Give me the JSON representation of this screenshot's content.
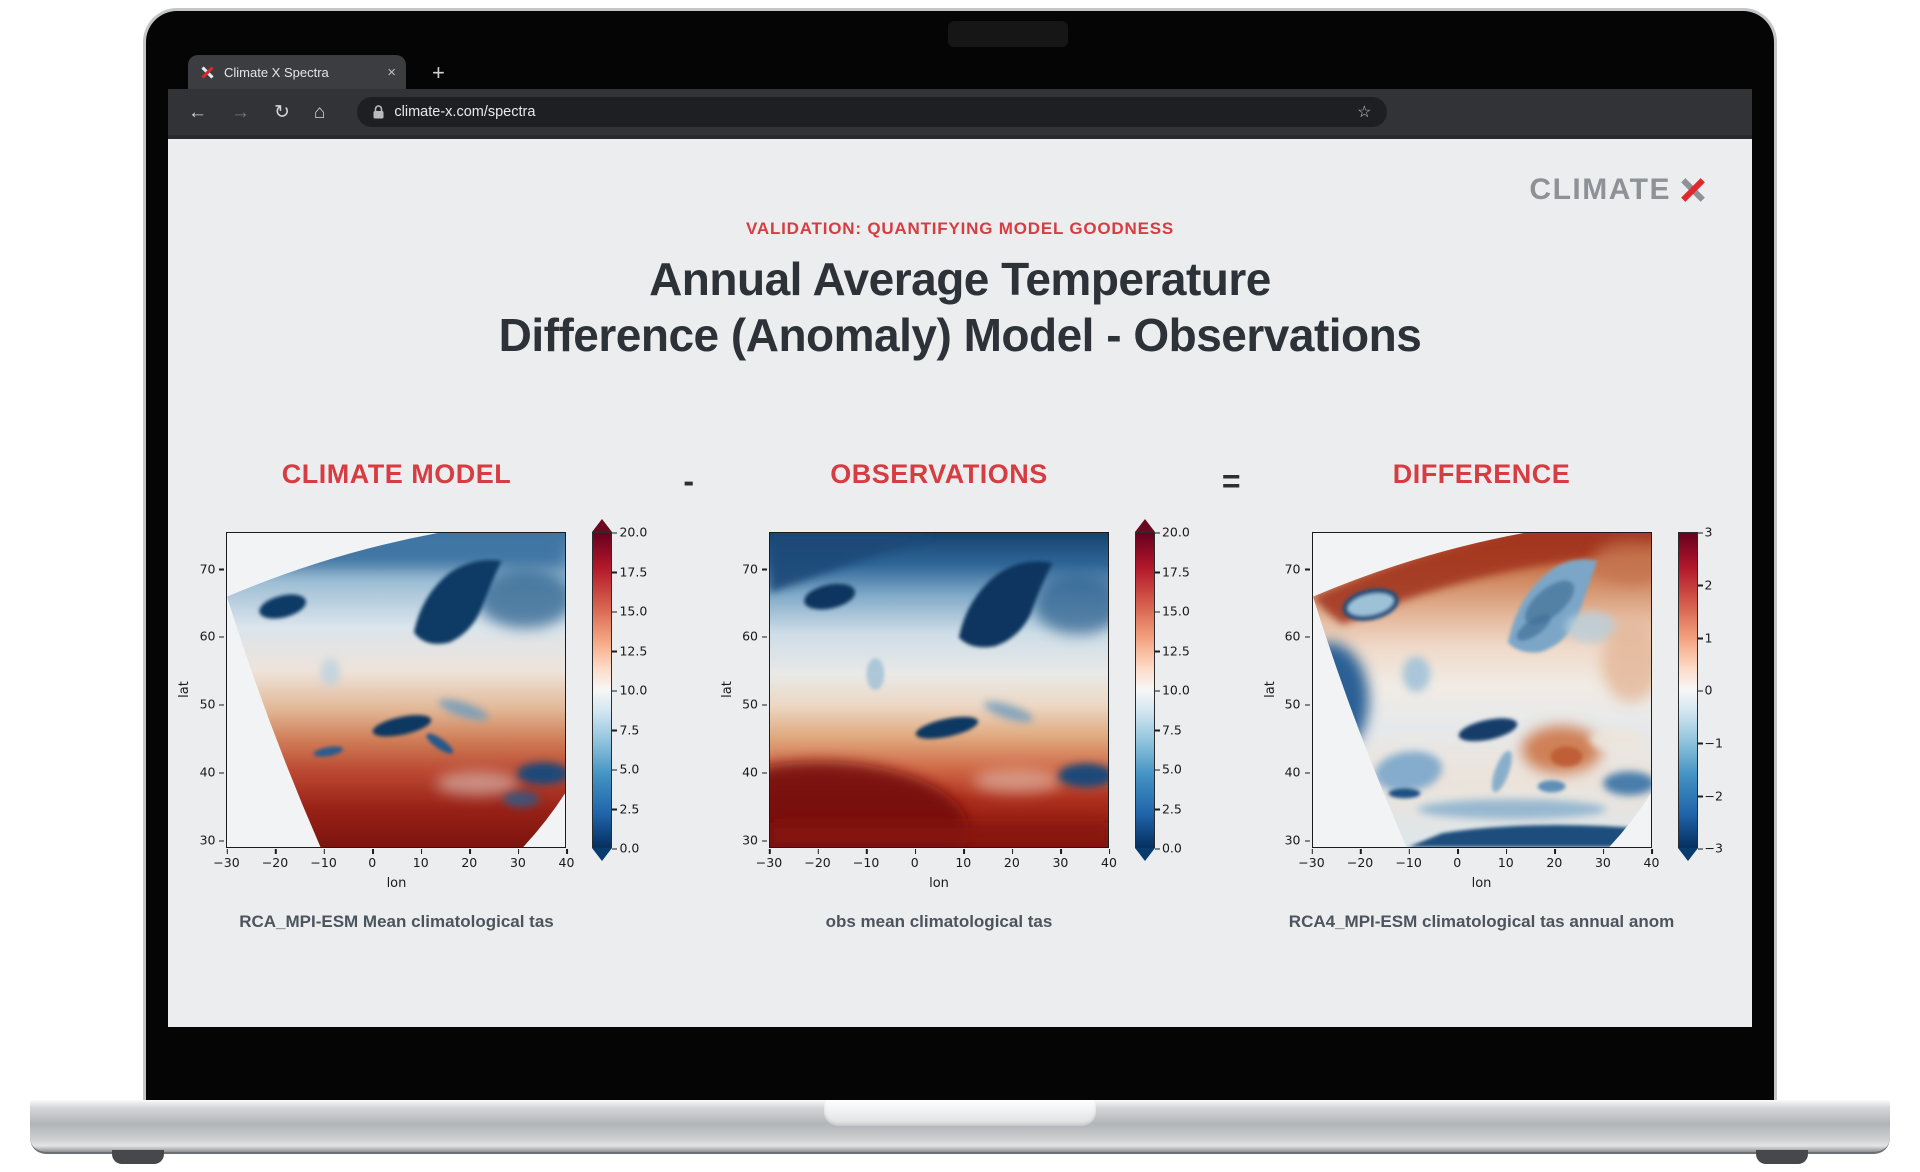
{
  "browser": {
    "tab_title": "Climate X Spectra",
    "url": "climate-x.com/spectra",
    "icons": {
      "back": "←",
      "forward": "→",
      "reload": "↻",
      "home": "⌂",
      "star": "☆",
      "new_tab": "+",
      "close_tab": "×"
    }
  },
  "page": {
    "logo_text": "CLIMATE",
    "eyebrow": "VALIDATION: QUANTIFYING MODEL GOODNESS",
    "title_line1": "Annual Average Temperature",
    "title_line2": "Difference (Anomaly) Model - Observations",
    "operator_minus": "-",
    "operator_equals": "=",
    "accent_color": "#d63d42",
    "background_color": "#ecedef"
  },
  "maps": [
    {
      "heading": "CLIMATE MODEL",
      "caption": "RCA_MPI-ESM Mean climatological tas",
      "xlabel": "lon",
      "ylabel": "lat",
      "xticks": [
        "−30",
        "−20",
        "−10",
        "0",
        "10",
        "20",
        "30",
        "40"
      ],
      "yticks": [
        "70",
        "60",
        "50",
        "40",
        "30"
      ],
      "colorbar_ticks": [
        "20.0",
        "17.5",
        "15.0",
        "12.5",
        "10.0",
        "7.5",
        "5.0",
        "2.5",
        "0.0"
      ],
      "colormap": "RdBu_r"
    },
    {
      "heading": "OBSERVATIONS",
      "caption": "obs mean climatological tas",
      "xlabel": "lon",
      "ylabel": "lat",
      "xticks": [
        "−30",
        "−20",
        "−10",
        "0",
        "10",
        "20",
        "30",
        "40"
      ],
      "yticks": [
        "70",
        "60",
        "50",
        "40",
        "30"
      ],
      "colorbar_ticks": [
        "20.0",
        "17.5",
        "15.0",
        "12.5",
        "10.0",
        "7.5",
        "5.0",
        "2.5",
        "0.0"
      ],
      "colormap": "RdBu_r"
    },
    {
      "heading": "DIFFERENCE",
      "caption": "RCA4_MPI-ESM climatological tas annual anom",
      "xlabel": "lon",
      "ylabel": "lat",
      "xticks": [
        "−30",
        "−20",
        "−10",
        "0",
        "10",
        "20",
        "30",
        "40"
      ],
      "yticks": [
        "70",
        "60",
        "50",
        "40",
        "30"
      ],
      "colorbar_ticks": [
        "3",
        "2",
        "1",
        "0",
        "−1",
        "−2",
        "−3"
      ],
      "colormap": "RdBu_r"
    }
  ]
}
